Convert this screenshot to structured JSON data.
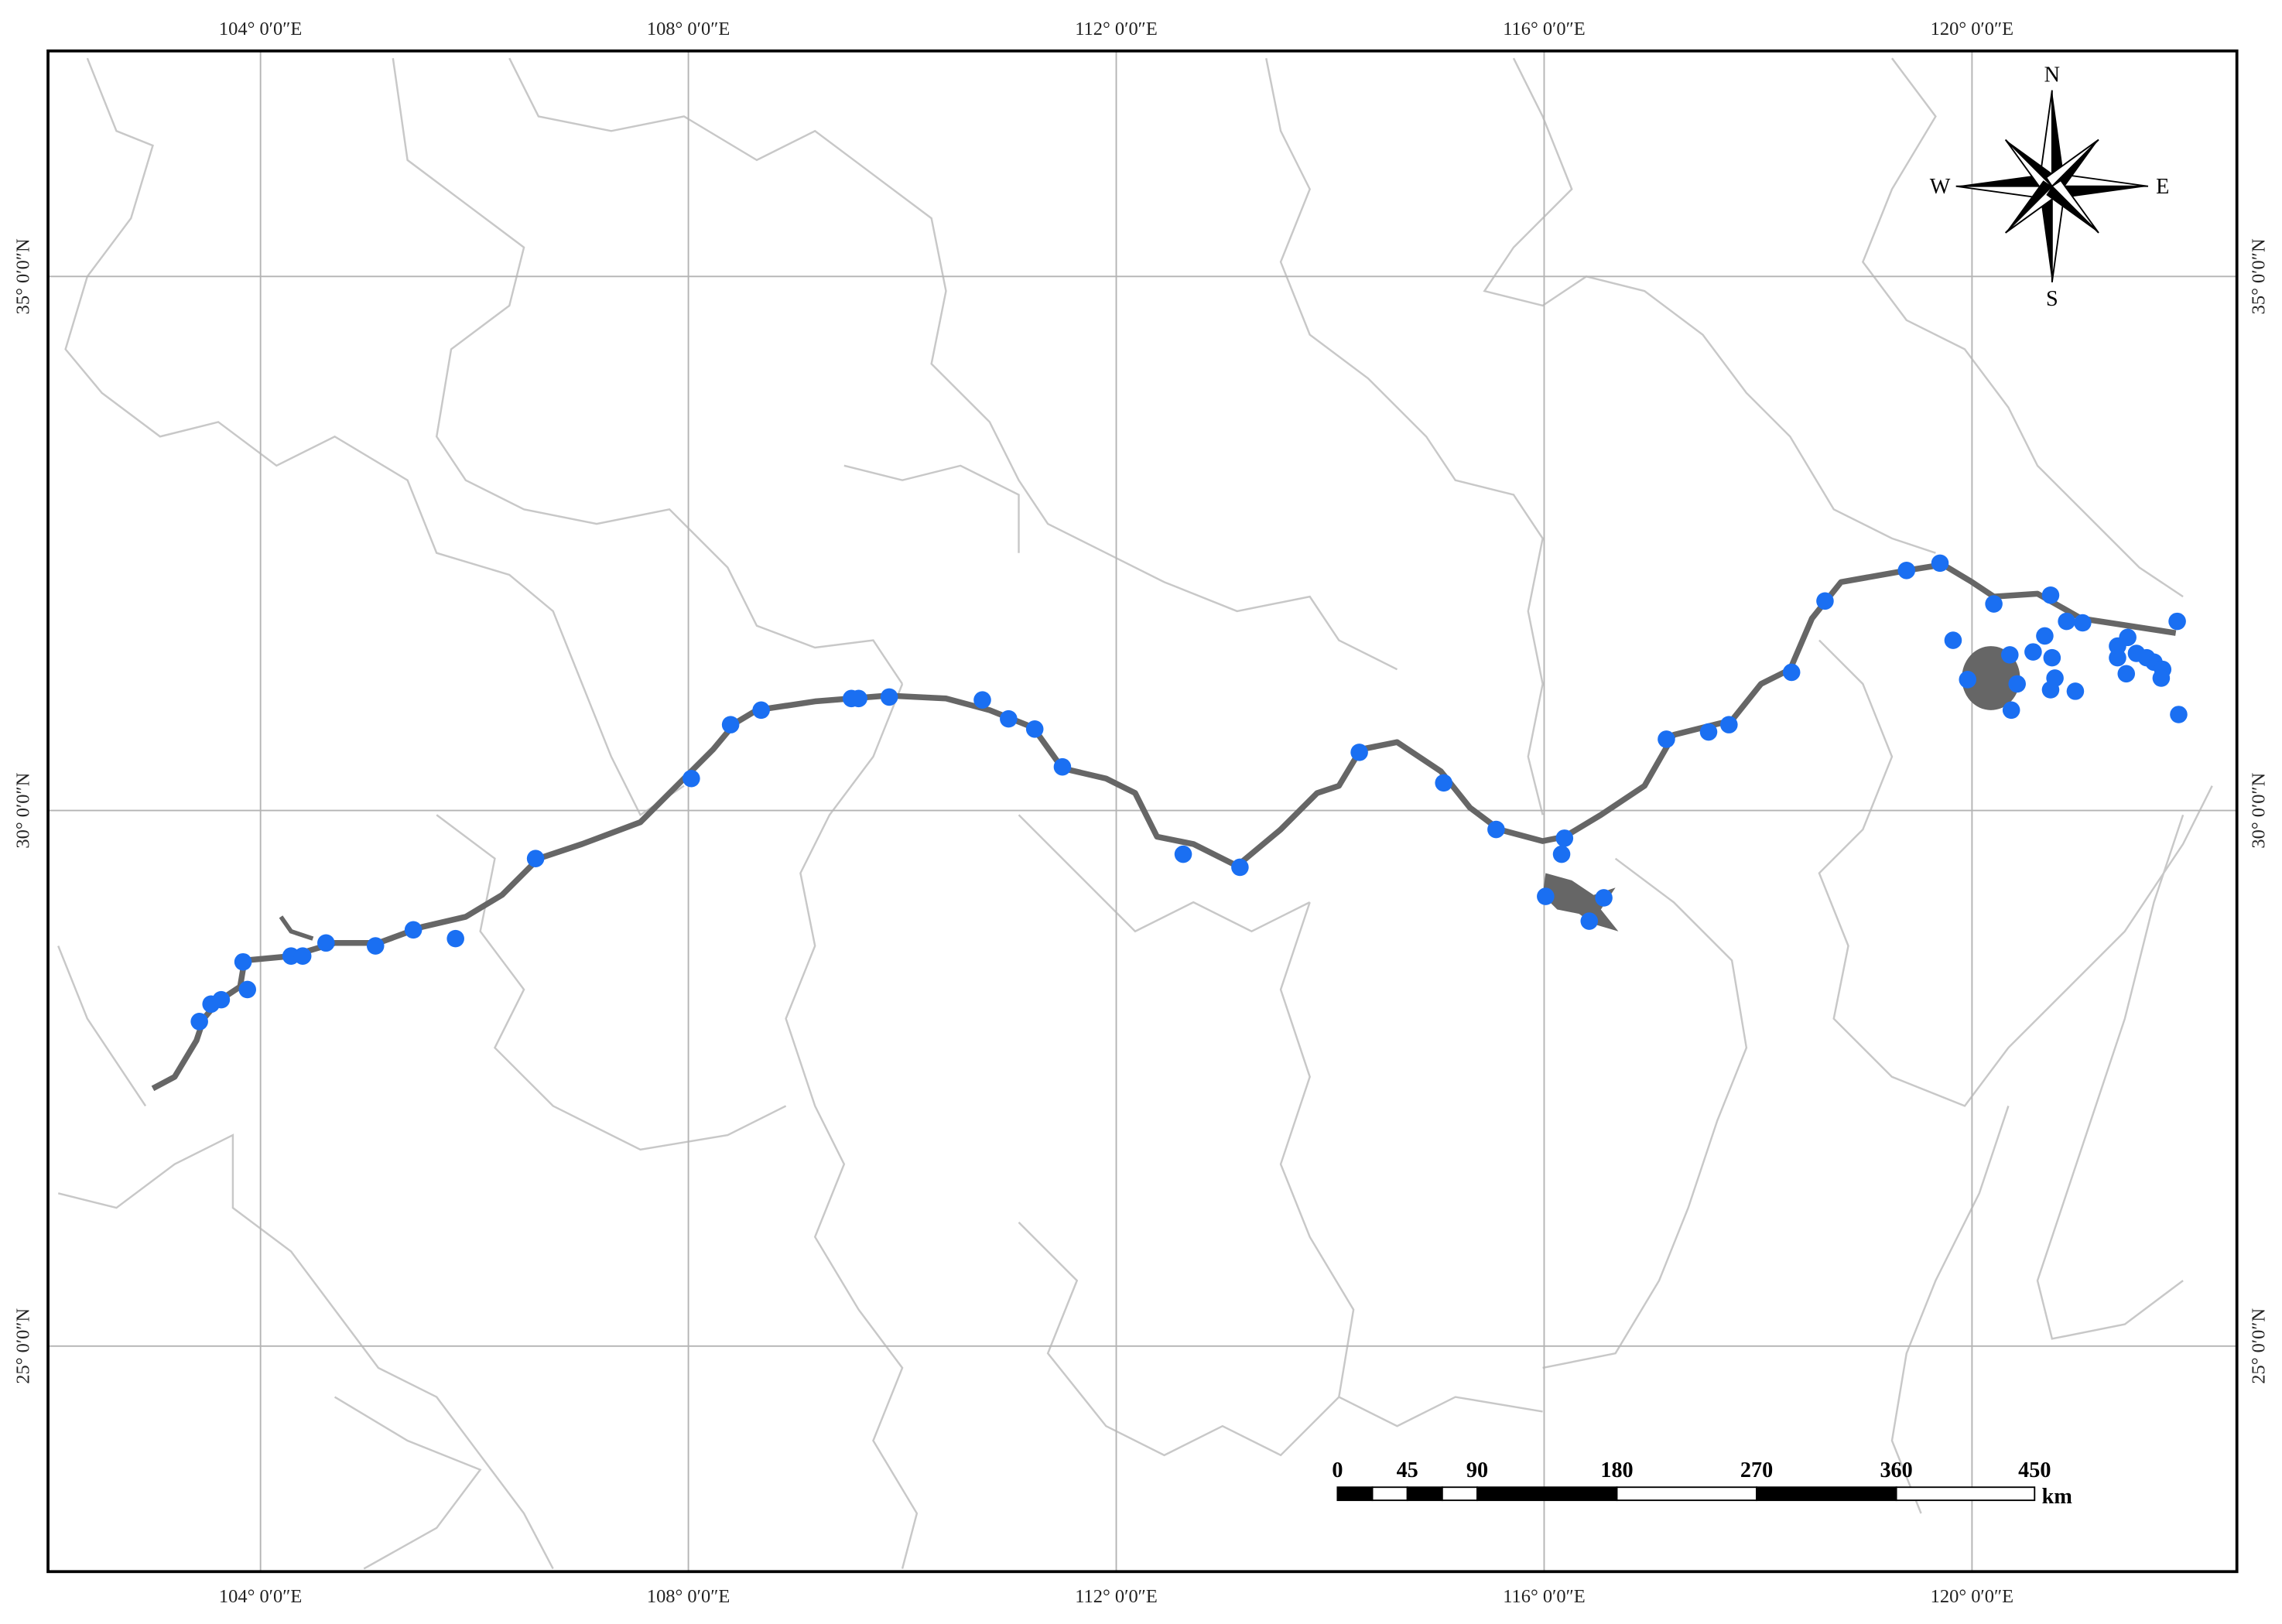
{
  "map": {
    "longitude_labels": [
      "104° 0′0″E",
      "108° 0′0″E",
      "112° 0′0″E",
      "116° 0′0″E",
      "120° 0′0″E"
    ],
    "latitude_labels": [
      "35° 0′0″N",
      "30° 0′0″N",
      "25° 0′0″N"
    ],
    "compass": {
      "north": "N",
      "south": "S",
      "east": "E",
      "west": "W"
    },
    "scale_bar": {
      "labels": [
        "0",
        "45",
        "90",
        "180",
        "270",
        "360",
        "450"
      ],
      "unit": "km"
    }
  }
}
